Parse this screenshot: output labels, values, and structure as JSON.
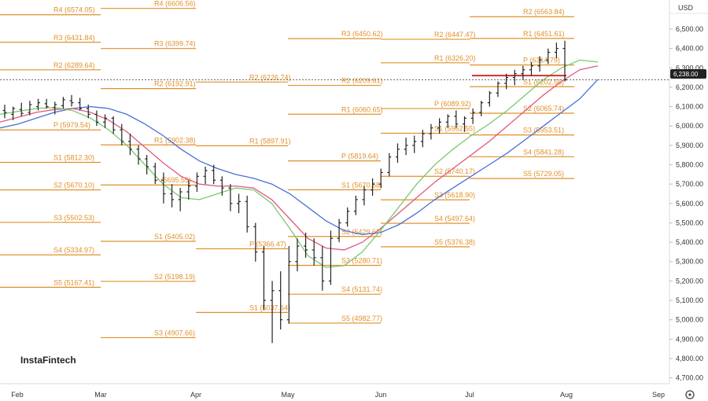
{
  "brand": "InstaFintech",
  "currency": "USD",
  "last_price": "6,238.00",
  "chart_data": {
    "type": "ohlc",
    "title": "",
    "x_labels": [
      "Feb",
      "Mar",
      "Apr",
      "May",
      "Jun",
      "Jul",
      "Aug",
      "Sep"
    ],
    "y_ticks": [
      "6,500.00",
      "6,400.00",
      "6,300.00",
      "6,200.00",
      "6,100.00",
      "6,000.00",
      "5,900.00",
      "5,800.00",
      "5,700.00",
      "5,600.00",
      "5,500.00",
      "5,400.00",
      "5,300.00",
      "5,200.00",
      "5,100.00",
      "5,000.00",
      "4,900.00",
      "4,800.00",
      "4,700.00"
    ],
    "ylim": [
      4670,
      6650
    ],
    "colors": {
      "pivot": "#e0902a",
      "ema_fast": "#7ac96f",
      "ema_mid": "#e05a7a",
      "ema_slow": "#4a6fd8",
      "resistance": "#d03030",
      "bars": "#222222"
    },
    "pivot_levels": [
      {
        "month": "Feb",
        "levels": [
          {
            "label": "R4 (6574.05)",
            "value": 6574.05
          },
          {
            "label": "R3 (6431.84)",
            "value": 6431.84
          },
          {
            "label": "R2 (6289.64)",
            "value": 6289.64
          },
          {
            "label": "P (5979.54)",
            "value": 5979.54
          },
          {
            "label": "S1 (5812.30)",
            "value": 5812.3
          },
          {
            "label": "S2 (5670.10)",
            "value": 5670.1
          },
          {
            "label": "S3 (5502.53)",
            "value": 5502.53
          },
          {
            "label": "S4 (5334.97)",
            "value": 5334.97
          },
          {
            "label": "S5 (5167.41)",
            "value": 5167.41
          }
        ]
      },
      {
        "month": "Mar",
        "levels": [
          {
            "label": "R4 (6606.56)",
            "value": 6606.56
          },
          {
            "label": "R3 (6399.74)",
            "value": 6399.74
          },
          {
            "label": "R2 (6192.91)",
            "value": 6192.91
          },
          {
            "label": "R1 (5902.38)",
            "value": 5902.38
          },
          {
            "label": "P (5695.55)",
            "value": 5695.55
          },
          {
            "label": "S1 (5405.02)",
            "value": 5405.02
          },
          {
            "label": "S2 (5198.19)",
            "value": 5198.19
          },
          {
            "label": "S3 (4907.66)",
            "value": 4907.66
          }
        ]
      },
      {
        "month": "Apr",
        "levels": [
          {
            "label": "R2 (6226.74)",
            "value": 6226.74
          },
          {
            "label": "R1 (5897.91)",
            "value": 5897.91
          },
          {
            "label": "P (5366.47)",
            "value": 5366.47
          },
          {
            "label": "S1 (5037.64)",
            "value": 5037.64
          }
        ]
      },
      {
        "month": "May",
        "levels": [
          {
            "label": "R3 (6450.62)",
            "value": 6450.62
          },
          {
            "label": "R2 (6209.61)",
            "value": 6209.61
          },
          {
            "label": "R1 (6060.65)",
            "value": 6060.65
          },
          {
            "label": "P (5819.64)",
            "value": 5819.64
          },
          {
            "label": "S1 (5670.68)",
            "value": 5670.68
          },
          {
            "label": "S2 (5429.67)",
            "value": 5429.67
          },
          {
            "label": "S3 (5280.71)",
            "value": 5280.71
          },
          {
            "label": "S4 (5131.74)",
            "value": 5131.74
          },
          {
            "label": "S5 (4982.77)",
            "value": 4982.77
          }
        ]
      },
      {
        "month": "Jun",
        "levels": [
          {
            "label": "R2 (6447.47)",
            "value": 6447.47
          },
          {
            "label": "R1 (6326.20)",
            "value": 6326.2
          },
          {
            "label": "P (6089.92)",
            "value": 6089.92
          },
          {
            "label": "S1 (5962.55)",
            "value": 5962.55
          },
          {
            "label": "S2 (5740.17)",
            "value": 5740.17
          },
          {
            "label": "S3 (5618.90)",
            "value": 5618.9
          },
          {
            "label": "S4 (5497.64)",
            "value": 5497.64
          },
          {
            "label": "S5 (5376.38)",
            "value": 5376.38
          }
        ]
      },
      {
        "month": "Jul",
        "levels": [
          {
            "label": "R2 (6563.84)",
            "value": 6563.84
          },
          {
            "label": "R1 (6451.61)",
            "value": 6451.61
          },
          {
            "label": "P (6314.79)",
            "value": 6314.79
          },
          {
            "label": "S1 (6202.56)",
            "value": 6202.56
          },
          {
            "label": "S2 (6065.74)",
            "value": 6065.74
          },
          {
            "label": "S3 (5953.51)",
            "value": 5953.51
          },
          {
            "label": "S4 (5841.28)",
            "value": 5841.28
          },
          {
            "label": "S5 (5729.05)",
            "value": 5729.05
          }
        ]
      }
    ],
    "ohlc": [
      [
        6080,
        6110,
        6040,
        6070
      ],
      [
        6060,
        6100,
        6030,
        6090
      ],
      [
        6085,
        6120,
        6050,
        6065
      ],
      [
        6070,
        6130,
        6055,
        6110
      ],
      [
        6100,
        6140,
        6080,
        6120
      ],
      [
        6115,
        6140,
        6090,
        6100
      ],
      [
        6095,
        6125,
        6060,
        6110
      ],
      [
        6105,
        6150,
        6090,
        6135
      ],
      [
        6130,
        6160,
        6100,
        6120
      ],
      [
        6120,
        6145,
        6080,
        6090
      ],
      [
        6090,
        6110,
        6040,
        6060
      ],
      [
        6060,
        6080,
        6000,
        6020
      ],
      [
        6020,
        6060,
        5990,
        6040
      ],
      [
        6040,
        6050,
        5960,
        5980
      ],
      [
        5980,
        6010,
        5900,
        5920
      ],
      [
        5920,
        5960,
        5850,
        5880
      ],
      [
        5880,
        5900,
        5800,
        5830
      ],
      [
        5830,
        5850,
        5750,
        5790
      ],
      [
        5790,
        5810,
        5700,
        5720
      ],
      [
        5720,
        5760,
        5600,
        5650
      ],
      [
        5650,
        5700,
        5580,
        5620
      ],
      [
        5620,
        5680,
        5560,
        5660
      ],
      [
        5660,
        5720,
        5620,
        5690
      ],
      [
        5690,
        5760,
        5660,
        5740
      ],
      [
        5740,
        5790,
        5700,
        5770
      ],
      [
        5770,
        5800,
        5700,
        5720
      ],
      [
        5720,
        5740,
        5640,
        5680
      ],
      [
        5680,
        5700,
        5560,
        5600
      ],
      [
        5600,
        5650,
        5550,
        5610
      ],
      [
        5610,
        5640,
        5450,
        5480
      ],
      [
        5480,
        5500,
        5300,
        5350
      ],
      [
        5350,
        5380,
        5050,
        5100
      ],
      [
        5100,
        5200,
        4880,
        5150
      ],
      [
        5150,
        5250,
        4950,
        5000
      ],
      [
        5000,
        5380,
        4980,
        5300
      ],
      [
        5300,
        5420,
        5250,
        5380
      ],
      [
        5380,
        5450,
        5320,
        5360
      ],
      [
        5360,
        5420,
        5280,
        5320
      ],
      [
        5320,
        5380,
        5150,
        5200
      ],
      [
        5200,
        5460,
        5180,
        5420
      ],
      [
        5420,
        5520,
        5400,
        5500
      ],
      [
        5500,
        5580,
        5480,
        5560
      ],
      [
        5560,
        5640,
        5540,
        5620
      ],
      [
        5620,
        5690,
        5590,
        5670
      ],
      [
        5670,
        5730,
        5640,
        5700
      ],
      [
        5700,
        5780,
        5680,
        5760
      ],
      [
        5760,
        5860,
        5740,
        5840
      ],
      [
        5840,
        5910,
        5810,
        5880
      ],
      [
        5880,
        5940,
        5850,
        5900
      ],
      [
        5900,
        5950,
        5860,
        5920
      ],
      [
        5920,
        5980,
        5890,
        5960
      ],
      [
        5960,
        6010,
        5930,
        5990
      ],
      [
        5990,
        6040,
        5960,
        6020
      ],
      [
        6020,
        6060,
        5990,
        6050
      ],
      [
        6050,
        6080,
        5990,
        6010
      ],
      [
        6010,
        6050,
        5970,
        6040
      ],
      [
        6040,
        6090,
        6010,
        6070
      ],
      [
        6070,
        6130,
        6050,
        6120
      ],
      [
        6120,
        6180,
        6100,
        6170
      ],
      [
        6170,
        6230,
        6150,
        6220
      ],
      [
        6220,
        6270,
        6190,
        6250
      ],
      [
        6250,
        6290,
        6210,
        6270
      ],
      [
        6270,
        6310,
        6240,
        6290
      ],
      [
        6290,
        6330,
        6260,
        6310
      ],
      [
        6310,
        6360,
        6280,
        6340
      ],
      [
        6340,
        6400,
        6320,
        6380
      ],
      [
        6380,
        6430,
        6350,
        6400
      ],
      [
        6400,
        6440,
        6230,
        6238
      ]
    ],
    "ema_fast": [
      6060,
      6075,
      6090,
      6095,
      6080,
      6040,
      5980,
      5900,
      5800,
      5700,
      5630,
      5620,
      5650,
      5680,
      5670,
      5600,
      5470,
      5330,
      5270,
      5280,
      5350,
      5460,
      5580,
      5700,
      5800,
      5880,
      5950,
      6010,
      6080,
      6160,
      6240,
      6300,
      6340,
      6330
    ],
    "ema_mid": [
      6020,
      6045,
      6070,
      6085,
      6090,
      6070,
      6030,
      5970,
      5890,
      5810,
      5740,
      5700,
      5690,
      5690,
      5680,
      5620,
      5520,
      5420,
      5370,
      5360,
      5400,
      5470,
      5550,
      5630,
      5710,
      5780,
      5850,
      5920,
      6000,
      6080,
      6160,
      6230,
      6290,
      6310
    ],
    "ema_slow": [
      5990,
      6010,
      6040,
      6070,
      6090,
      6100,
      6090,
      6060,
      6010,
      5950,
      5880,
      5820,
      5780,
      5750,
      5730,
      5700,
      5650,
      5580,
      5510,
      5460,
      5440,
      5450,
      5490,
      5550,
      5620,
      5680,
      5740,
      5800,
      5860,
      5930,
      6000,
      6070,
      6140,
      6240
    ],
    "resistance_line": {
      "value": 6260
    }
  }
}
